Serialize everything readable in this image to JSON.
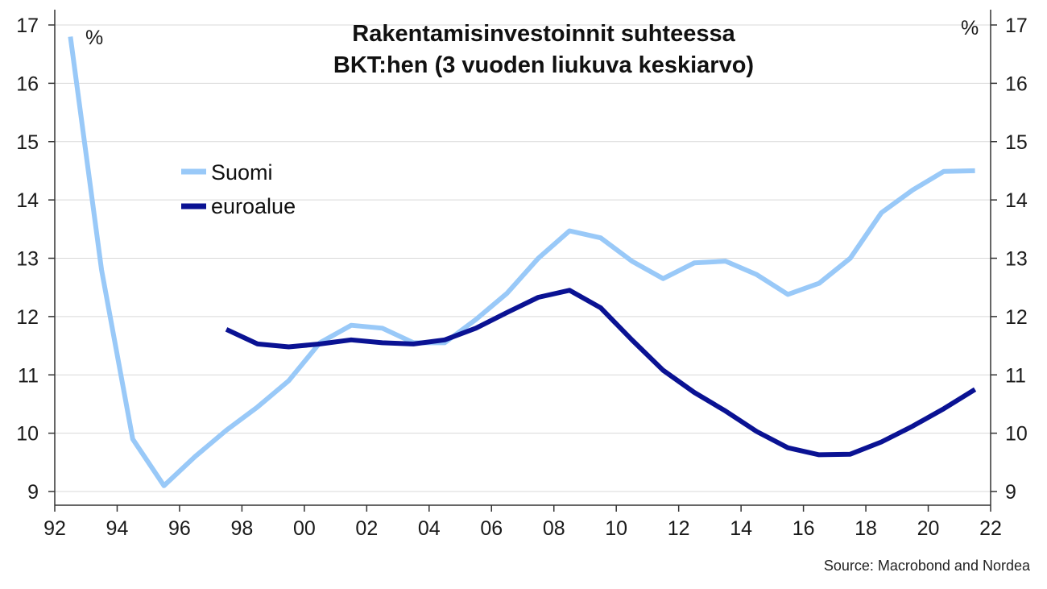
{
  "chart_data": {
    "type": "line",
    "title_lines": [
      "Rakentamisinvestoinnit suhteessa",
      "BKT:hen (3 vuoden liukuva keskiarvo)"
    ],
    "unit_left": "%",
    "unit_right": "%",
    "source": "Source: Macrobond and Nordea",
    "ylim": [
      9,
      17
    ],
    "yticks": [
      9,
      10,
      11,
      12,
      13,
      14,
      15,
      16,
      17
    ],
    "xlim": [
      1992,
      2022
    ],
    "xticks": [
      1992,
      1994,
      1996,
      1998,
      2000,
      2002,
      2004,
      2006,
      2008,
      2010,
      2012,
      2014,
      2016,
      2018,
      2020,
      2022
    ],
    "xtick_labels": [
      "92",
      "94",
      "96",
      "98",
      "00",
      "02",
      "04",
      "06",
      "08",
      "10",
      "12",
      "14",
      "16",
      "18",
      "20",
      "22"
    ],
    "grid": true,
    "legend_placement": "upper-left",
    "series": [
      {
        "name": "Suomi",
        "color": "#99c9f8",
        "x": [
          1992.5,
          1993.5,
          1994.5,
          1995.5,
          1996.5,
          1997.5,
          1998.5,
          1999.5,
          2000.5,
          2001.5,
          2002.5,
          2003.5,
          2004.5,
          2005.5,
          2006.5,
          2007.5,
          2008.5,
          2009.5,
          2010.5,
          2011.5,
          2012.5,
          2013.5,
          2014.5,
          2015.5,
          2016.5,
          2017.5,
          2018.5,
          2019.5,
          2020.5,
          2021.5
        ],
        "values": [
          16.8,
          12.8,
          9.9,
          9.1,
          9.6,
          10.05,
          10.45,
          10.9,
          11.55,
          11.85,
          11.8,
          11.55,
          11.55,
          11.95,
          12.4,
          13.0,
          13.47,
          13.35,
          12.95,
          12.65,
          12.92,
          12.95,
          12.72,
          12.38,
          12.57,
          13.0,
          13.78,
          14.17,
          14.49,
          14.5
        ]
      },
      {
        "name": "euroalue",
        "color": "#0a1293",
        "x": [
          1997.5,
          1998.5,
          1999.5,
          2000.5,
          2001.5,
          2002.5,
          2003.5,
          2004.5,
          2005.5,
          2006.5,
          2007.5,
          2008.5,
          2009.5,
          2010.5,
          2011.5,
          2012.5,
          2013.5,
          2014.5,
          2015.5,
          2016.5,
          2017.5,
          2018.5,
          2019.5,
          2020.5,
          2021.5
        ],
        "values": [
          11.78,
          11.53,
          11.48,
          11.53,
          11.6,
          11.55,
          11.53,
          11.6,
          11.8,
          12.07,
          12.33,
          12.45,
          12.15,
          11.6,
          11.08,
          10.7,
          10.38,
          10.03,
          9.75,
          9.63,
          9.64,
          9.85,
          10.12,
          10.42,
          10.75
        ]
      }
    ]
  }
}
